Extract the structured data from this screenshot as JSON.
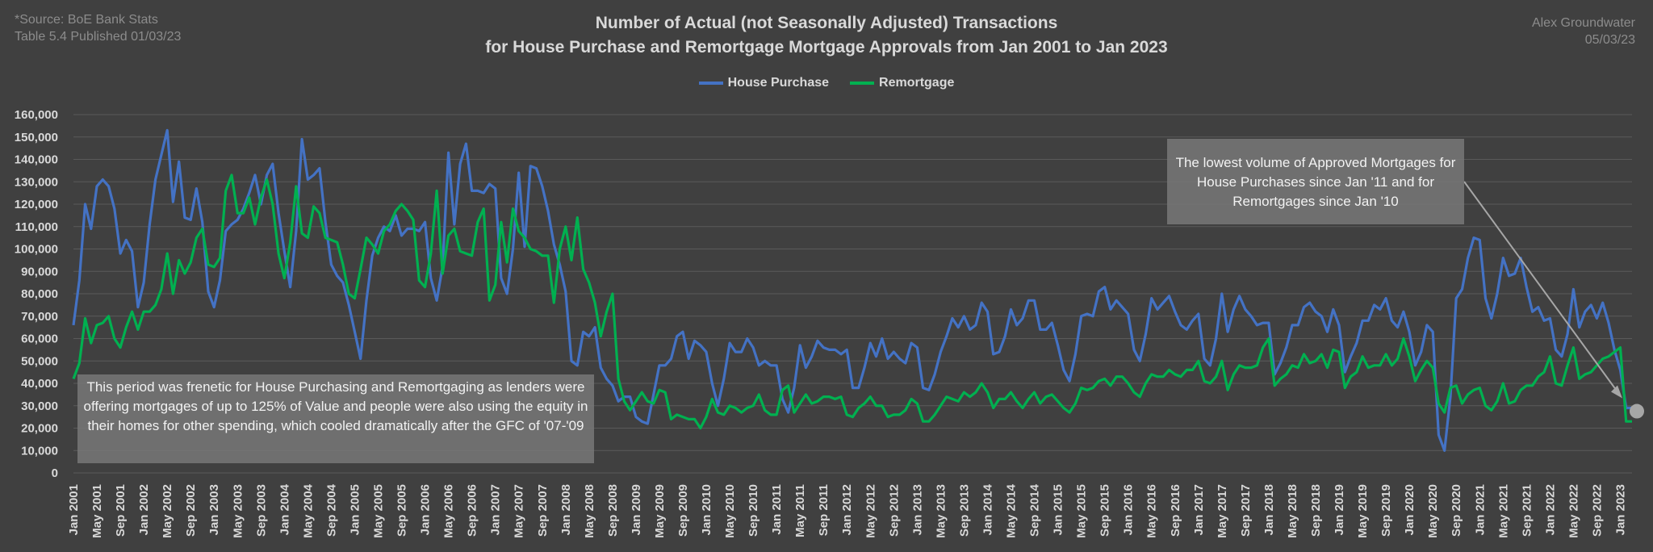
{
  "source": {
    "line1": "*Source: BoE Bank Stats",
    "line2": "Table 5.4 Published 01/03/23"
  },
  "author": {
    "name": "Alex Groundwater",
    "date": "05/03/23"
  },
  "annotations": {
    "left": "This period was frenetic for House Purchasing and Remortgaging as lenders were offering mortgages of up to 125% of Value and people were also using the equity in their homes for other spending, which cooled dramatically after the GFC of '07-'09",
    "right": "The lowest volume of Approved Mortgages for House Purchases since Jan '11 and for Remortgages since Jan '10"
  },
  "chart_data": {
    "type": "line",
    "title": "Number of Actual (not Seasonally Adjusted) Transactions",
    "subtitle": "for House Purchase and Remortgage Mortgage Approvals from Jan 2001 to Jan 2023",
    "xlabel": "",
    "ylabel": "",
    "ylim": [
      0,
      160000
    ],
    "yticks": [
      0,
      10000,
      20000,
      30000,
      40000,
      50000,
      60000,
      70000,
      80000,
      90000,
      100000,
      110000,
      120000,
      130000,
      140000,
      150000,
      160000
    ],
    "ytick_labels": [
      "0",
      "10,000",
      "20,000",
      "30,000",
      "40,000",
      "50,000",
      "60,000",
      "70,000",
      "80,000",
      "90,000",
      "100,000",
      "110,000",
      "120,000",
      "130,000",
      "140,000",
      "150,000",
      "160,000"
    ],
    "x_start": "Jan 2001",
    "x_end": "Jan 2023",
    "x_tick_labels": [
      "Jan 2001",
      "May 2001",
      "Sep 2001",
      "Jan 2002",
      "May 2002",
      "Sep 2002",
      "Jan 2003",
      "May 2003",
      "Sep 2003",
      "Jan 2004",
      "May 2004",
      "Sep 2004",
      "Jan 2005",
      "May 2005",
      "Sep 2005",
      "Jan 2006",
      "May 2006",
      "Sep 2006",
      "Jan 2007",
      "May 2007",
      "Sep 2007",
      "Jan 2008",
      "May 2008",
      "Sep 2008",
      "Jan 2009",
      "May 2009",
      "Sep 2009",
      "Jan 2010",
      "May 2010",
      "Sep 2010",
      "Jan 2011",
      "May 2011",
      "Sep 2011",
      "Jan 2012",
      "May 2012",
      "Sep 2012",
      "Jan 2013",
      "May 2013",
      "Sep 2013",
      "Jan 2014",
      "May 2014",
      "Sep 2014",
      "Jan 2015",
      "May 2015",
      "Sep 2015",
      "Jan 2016",
      "May 2016",
      "Sep 2016",
      "Jan 2017",
      "May 2017",
      "Sep 2017",
      "Jan 2018",
      "May 2018",
      "Sep 2018",
      "Jan 2019",
      "May 2019",
      "Sep 2019",
      "Jan 2020",
      "May 2020",
      "Sep 2020",
      "Jan 2021",
      "May 2021",
      "Sep 2021",
      "Jan 2022",
      "May 2022",
      "Sep 2022",
      "Jan 2023"
    ],
    "grid": "horizontal",
    "legend": "top-center",
    "series": [
      {
        "name": "House Purchase",
        "color": "#4472c4",
        "values": [
          66000,
          86000,
          120000,
          109000,
          128000,
          131000,
          128000,
          118000,
          98000,
          104000,
          99000,
          74000,
          85000,
          111000,
          131000,
          142000,
          153000,
          121000,
          139000,
          114000,
          113000,
          127000,
          112000,
          81000,
          74000,
          86000,
          108000,
          111000,
          113000,
          118000,
          125000,
          133000,
          120000,
          133000,
          138000,
          116000,
          99000,
          83000,
          108000,
          149000,
          131000,
          133000,
          136000,
          112000,
          93000,
          88000,
          85000,
          75000,
          63000,
          51000,
          77000,
          97000,
          105000,
          110000,
          108000,
          115000,
          106000,
          109000,
          109000,
          108000,
          112000,
          87000,
          77000,
          92000,
          143000,
          111000,
          138000,
          147000,
          126000,
          126000,
          125000,
          129000,
          127000,
          87000,
          80000,
          100000,
          134000,
          101000,
          137000,
          136000,
          128000,
          117000,
          102000,
          93000,
          81000,
          50000,
          48000,
          63000,
          61000,
          65000,
          47000,
          42000,
          39000,
          32000,
          34000,
          34000,
          25000,
          23000,
          22000,
          35000,
          48000,
          48000,
          51000,
          61000,
          63000,
          51000,
          59000,
          57000,
          54000,
          40000,
          30000,
          42000,
          58000,
          54000,
          54000,
          60000,
          56000,
          48000,
          50000,
          48000,
          48000,
          33000,
          27000,
          38000,
          57000,
          47000,
          52000,
          59000,
          56000,
          55000,
          55000,
          53000,
          55000,
          38000,
          38000,
          47000,
          58000,
          52000,
          60000,
          51000,
          54000,
          51000,
          49000,
          58000,
          56000,
          38000,
          37000,
          44000,
          54000,
          61000,
          69000,
          65000,
          70000,
          64000,
          66000,
          76000,
          72000,
          53000,
          54000,
          61000,
          73000,
          66000,
          69000,
          77000,
          77000,
          64000,
          64000,
          67000,
          57000,
          46000,
          41000,
          53000,
          70000,
          71000,
          70000,
          81000,
          83000,
          73000,
          77000,
          74000,
          71000,
          55000,
          50000,
          62000,
          78000,
          73000,
          76000,
          79000,
          72000,
          66000,
          64000,
          68000,
          71000,
          51000,
          48000,
          60000,
          80000,
          63000,
          73000,
          79000,
          73000,
          70000,
          66000,
          67000,
          67000,
          44000,
          49000,
          56000,
          66000,
          66000,
          74000,
          76000,
          72000,
          70000,
          63000,
          73000,
          66000,
          45000,
          52000,
          58000,
          68000,
          68000,
          75000,
          73000,
          78000,
          68000,
          65000,
          72000,
          63000,
          48000,
          54000,
          66000,
          63000,
          17000,
          10000,
          34000,
          78000,
          82000,
          96000,
          105000,
          104000,
          78000,
          69000,
          80000,
          96000,
          88000,
          89000,
          96000,
          83000,
          72000,
          74000,
          68000,
          69000,
          55000,
          52000,
          62000,
          82000,
          65000,
          72000,
          75000,
          69000,
          76000,
          67000,
          55000,
          46000,
          29000,
          29000
        ]
      },
      {
        "name": "Remortgage",
        "color": "#00b050",
        "values": [
          42000,
          49000,
          69000,
          58000,
          66000,
          67000,
          70000,
          60000,
          56000,
          65000,
          72000,
          64000,
          72000,
          72000,
          75000,
          82000,
          98000,
          80000,
          95000,
          89000,
          94000,
          105000,
          109000,
          93000,
          92000,
          96000,
          126000,
          133000,
          116000,
          116000,
          123000,
          111000,
          123000,
          131000,
          120000,
          98000,
          87000,
          103000,
          128000,
          107000,
          105000,
          119000,
          116000,
          105000,
          104000,
          103000,
          93000,
          80000,
          78000,
          91000,
          105000,
          102000,
          98000,
          108000,
          111000,
          117000,
          120000,
          117000,
          113000,
          86000,
          83000,
          98000,
          126000,
          89000,
          106000,
          109000,
          99000,
          98000,
          97000,
          112000,
          118000,
          77000,
          84000,
          112000,
          94000,
          118000,
          108000,
          105000,
          100000,
          99000,
          97000,
          97000,
          76000,
          100000,
          110000,
          95000,
          114000,
          91000,
          85000,
          76000,
          61000,
          72000,
          80000,
          42000,
          32000,
          28000,
          32000,
          36000,
          32000,
          31000,
          37000,
          36000,
          24000,
          26000,
          25000,
          24000,
          24000,
          20000,
          25000,
          33000,
          27000,
          26000,
          30000,
          29000,
          27000,
          29000,
          30000,
          35000,
          28000,
          26000,
          26000,
          37000,
          39000,
          27000,
          31000,
          35000,
          31000,
          32000,
          34000,
          34000,
          33000,
          34000,
          26000,
          25000,
          29000,
          31000,
          34000,
          30000,
          30000,
          25000,
          26000,
          26000,
          28000,
          33000,
          31000,
          23000,
          23000,
          26000,
          30000,
          34000,
          33000,
          32000,
          36000,
          34000,
          36000,
          40000,
          36000,
          29000,
          33000,
          33000,
          36000,
          32000,
          29000,
          33000,
          36000,
          31000,
          34000,
          35000,
          32000,
          29000,
          27000,
          31000,
          38000,
          37000,
          38000,
          41000,
          42000,
          39000,
          43000,
          43000,
          40000,
          36000,
          34000,
          40000,
          44000,
          43000,
          43000,
          46000,
          44000,
          43000,
          46000,
          46000,
          50000,
          41000,
          40000,
          43000,
          50000,
          37000,
          44000,
          48000,
          47000,
          47000,
          48000,
          56000,
          60000,
          39000,
          42000,
          44000,
          48000,
          47000,
          53000,
          49000,
          50000,
          53000,
          47000,
          55000,
          54000,
          38000,
          43000,
          45000,
          52000,
          47000,
          48000,
          48000,
          53000,
          48000,
          51000,
          60000,
          52000,
          41000,
          46000,
          50000,
          47000,
          31000,
          27000,
          38000,
          39000,
          31000,
          35000,
          37000,
          38000,
          30000,
          28000,
          32000,
          40000,
          31000,
          32000,
          37000,
          39000,
          39000,
          43000,
          45000,
          52000,
          40000,
          39000,
          48000,
          56000,
          42000,
          44000,
          45000,
          48000,
          51000,
          52000,
          54000,
          56000,
          23000,
          23000
        ]
      }
    ]
  }
}
